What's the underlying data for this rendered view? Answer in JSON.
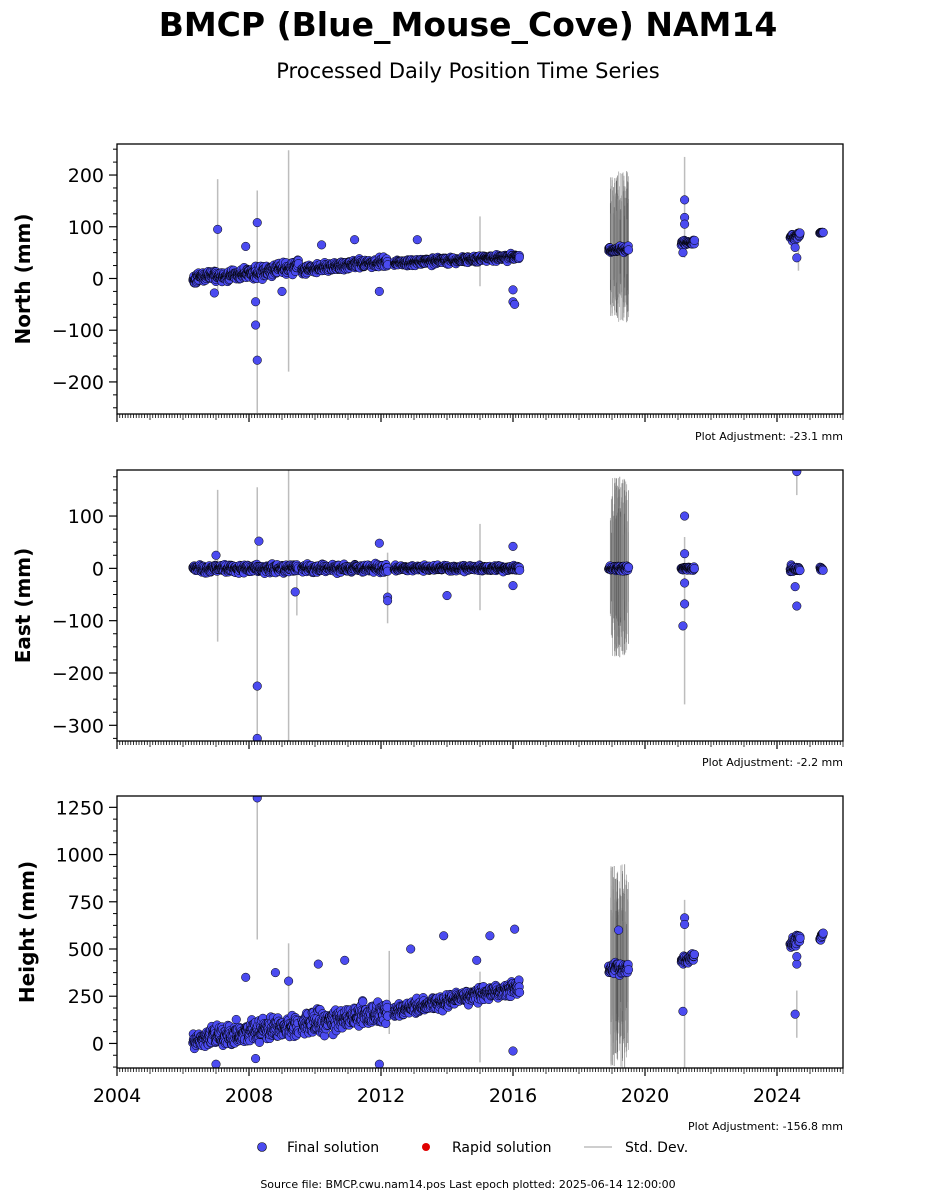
{
  "header": {
    "title": "BMCP (Blue_Mouse_Cove) NAM14",
    "subtitle": "Processed Daily Position Time Series"
  },
  "legend": {
    "final": "Final solution",
    "rapid": "Rapid solution",
    "std": "Std. Dev."
  },
  "colors": {
    "final": "#4b4bf0",
    "rapid": "#e00000",
    "std": "#bdbdbd",
    "edge": "#000000"
  },
  "footer": {
    "source": "Source file: BMCP.cwu.nam14.pos  Last epoch plotted: 2025-06-14 12:00:00"
  },
  "chart_data": [
    {
      "type": "scatter",
      "ylabel": "North (mm)",
      "adjustment": "Plot Adjustment: -23.1 mm",
      "xlim": [
        2004,
        2026
      ],
      "ylim": [
        -262,
        260
      ],
      "yticks": [
        -200,
        -100,
        0,
        100,
        200
      ],
      "ytick_labels": [
        "−200",
        "−100",
        "0",
        "100",
        "200"
      ],
      "segments": [
        {
          "x0": 2006.3,
          "x1": 2007.0,
          "y0": 0,
          "y1": 8,
          "noise": 9
        },
        {
          "x0": 2007.0,
          "x1": 2008.0,
          "y0": 2,
          "y1": 10,
          "noise": 9
        },
        {
          "x0": 2008.0,
          "x1": 2009.5,
          "y0": 8,
          "y1": 25,
          "noise": 11
        },
        {
          "x0": 2009.6,
          "x1": 2012.2,
          "y0": 16,
          "y1": 33,
          "noise": 8
        },
        {
          "x0": 2012.4,
          "x1": 2016.2,
          "y0": 30,
          "y1": 42,
          "noise": 6
        },
        {
          "x0": 2018.9,
          "x1": 2019.5,
          "y0": 53,
          "y1": 57,
          "noise": 5
        },
        {
          "x0": 2021.1,
          "x1": 2021.5,
          "y0": 68,
          "y1": 70,
          "noise": 4
        },
        {
          "x0": 2024.4,
          "x1": 2024.7,
          "y0": 80,
          "y1": 84,
          "noise": 6
        },
        {
          "x0": 2025.3,
          "x1": 2025.4,
          "y0": 88,
          "y1": 89,
          "noise": 1
        }
      ],
      "outliers": [
        {
          "x": 2007.05,
          "y": 95
        },
        {
          "x": 2008.25,
          "y": 108
        },
        {
          "x": 2008.2,
          "y": -90
        },
        {
          "x": 2008.25,
          "y": -158
        },
        {
          "x": 2008.2,
          "y": -45
        },
        {
          "x": 2007.9,
          "y": 62
        },
        {
          "x": 2010.2,
          "y": 65
        },
        {
          "x": 2011.2,
          "y": 75
        },
        {
          "x": 2011.95,
          "y": -25
        },
        {
          "x": 2013.1,
          "y": 75
        },
        {
          "x": 2016.0,
          "y": -45
        },
        {
          "x": 2016.05,
          "y": -50
        },
        {
          "x": 2016.0,
          "y": -22
        },
        {
          "x": 2021.2,
          "y": 152
        },
        {
          "x": 2021.2,
          "y": 118
        },
        {
          "x": 2021.2,
          "y": 105
        },
        {
          "x": 2021.15,
          "y": 50
        },
        {
          "x": 2024.6,
          "y": 40
        },
        {
          "x": 2024.55,
          "y": 60
        },
        {
          "x": 2009.0,
          "y": -25
        },
        {
          "x": 2006.95,
          "y": -28
        }
      ],
      "errorbars": [
        {
          "x": 2007.05,
          "y0": -30,
          "y1": 192
        },
        {
          "x": 2008.25,
          "y0": -260,
          "y1": 170
        },
        {
          "x": 2009.2,
          "y0": -180,
          "y1": 248
        },
        {
          "x": 2015.0,
          "y0": -15,
          "y1": 120
        },
        {
          "x": 2021.2,
          "y0": 40,
          "y1": 235
        },
        {
          "x": 2024.65,
          "y0": 15,
          "y1": 98
        }
      ],
      "noisy_band": {
        "x0": 2018.95,
        "x1": 2019.5,
        "y0": -85,
        "y1": 208
      }
    },
    {
      "type": "scatter",
      "ylabel": "East (mm)",
      "adjustment": "Plot Adjustment: -2.2 mm",
      "xlim": [
        2004,
        2026
      ],
      "ylim": [
        -330,
        188
      ],
      "yticks": [
        -300,
        -200,
        -100,
        0,
        100
      ],
      "ytick_labels": [
        "−300",
        "−200",
        "−100",
        "0",
        "100"
      ],
      "segments": [
        {
          "x0": 2006.3,
          "x1": 2009.5,
          "y0": 0,
          "y1": 0,
          "noise": 7
        },
        {
          "x0": 2009.6,
          "x1": 2012.2,
          "y0": 0,
          "y1": 0,
          "noise": 7
        },
        {
          "x0": 2012.4,
          "x1": 2016.2,
          "y0": 0,
          "y1": 0,
          "noise": 5
        },
        {
          "x0": 2018.9,
          "x1": 2019.5,
          "y0": 0,
          "y1": 0,
          "noise": 5
        },
        {
          "x0": 2021.1,
          "x1": 2021.5,
          "y0": 0,
          "y1": 0,
          "noise": 3
        },
        {
          "x0": 2024.4,
          "x1": 2024.7,
          "y0": -2,
          "y1": -2,
          "noise": 6
        },
        {
          "x0": 2025.3,
          "x1": 2025.4,
          "y0": -1,
          "y1": -1,
          "noise": 3
        }
      ],
      "outliers": [
        {
          "x": 2008.25,
          "y": -225
        },
        {
          "x": 2008.25,
          "y": -325
        },
        {
          "x": 2008.3,
          "y": 52
        },
        {
          "x": 2009.4,
          "y": -45
        },
        {
          "x": 2012.2,
          "y": -55
        },
        {
          "x": 2012.2,
          "y": -62
        },
        {
          "x": 2011.95,
          "y": 48
        },
        {
          "x": 2014.0,
          "y": -52
        },
        {
          "x": 2016.0,
          "y": 42
        },
        {
          "x": 2016.0,
          "y": -33
        },
        {
          "x": 2021.2,
          "y": 100
        },
        {
          "x": 2021.2,
          "y": 28
        },
        {
          "x": 2021.2,
          "y": -28
        },
        {
          "x": 2021.2,
          "y": -68
        },
        {
          "x": 2021.15,
          "y": -110
        },
        {
          "x": 2024.6,
          "y": 185
        },
        {
          "x": 2024.55,
          "y": -35
        },
        {
          "x": 2024.6,
          "y": -72
        },
        {
          "x": 2007.0,
          "y": 25
        }
      ],
      "errorbars": [
        {
          "x": 2007.05,
          "y0": -140,
          "y1": 150
        },
        {
          "x": 2008.25,
          "y0": -330,
          "y1": 155
        },
        {
          "x": 2009.2,
          "y0": -330,
          "y1": 188
        },
        {
          "x": 2009.45,
          "y0": -90,
          "y1": -10
        },
        {
          "x": 2012.2,
          "y0": -105,
          "y1": 30
        },
        {
          "x": 2015.0,
          "y0": -80,
          "y1": 85
        },
        {
          "x": 2021.2,
          "y0": -260,
          "y1": 60
        },
        {
          "x": 2024.6,
          "y0": 140,
          "y1": 188
        }
      ],
      "noisy_band": {
        "x0": 2018.95,
        "x1": 2019.5,
        "y0": -170,
        "y1": 175
      }
    },
    {
      "type": "scatter",
      "ylabel": "Height (mm)",
      "adjustment": "Plot Adjustment: -156.8 mm",
      "xlim": [
        2004,
        2026
      ],
      "ylim": [
        -130,
        1310
      ],
      "xticks": [
        2004,
        2008,
        2012,
        2016,
        2020,
        2024
      ],
      "xtick_labels": [
        "2004",
        "2008",
        "2012",
        "2016",
        "2020",
        "2024"
      ],
      "yticks": [
        0,
        250,
        500,
        750,
        1000,
        1250
      ],
      "ytick_labels": [
        "0",
        "250",
        "500",
        "750",
        "1000",
        "1250"
      ],
      "segments": [
        {
          "x0": 2006.3,
          "x1": 2007.0,
          "y0": 10,
          "y1": 50,
          "noise": 40
        },
        {
          "x0": 2007.0,
          "x1": 2009.5,
          "y0": 30,
          "y1": 100,
          "noise": 55
        },
        {
          "x0": 2009.6,
          "x1": 2012.2,
          "y0": 100,
          "y1": 170,
          "noise": 55
        },
        {
          "x0": 2012.4,
          "x1": 2016.2,
          "y0": 170,
          "y1": 300,
          "noise": 35
        },
        {
          "x0": 2018.9,
          "x1": 2019.5,
          "y0": 390,
          "y1": 400,
          "noise": 30
        },
        {
          "x0": 2021.1,
          "x1": 2021.5,
          "y0": 440,
          "y1": 460,
          "noise": 25
        },
        {
          "x0": 2024.4,
          "x1": 2024.7,
          "y0": 530,
          "y1": 560,
          "noise": 30
        },
        {
          "x0": 2025.3,
          "x1": 2025.4,
          "y0": 555,
          "y1": 580,
          "noise": 15
        }
      ],
      "outliers": [
        {
          "x": 2008.25,
          "y": 1300
        },
        {
          "x": 2007.9,
          "y": 350
        },
        {
          "x": 2008.8,
          "y": 375
        },
        {
          "x": 2009.2,
          "y": 330
        },
        {
          "x": 2010.1,
          "y": 420
        },
        {
          "x": 2010.9,
          "y": 440
        },
        {
          "x": 2011.95,
          "y": -110
        },
        {
          "x": 2012.9,
          "y": 500
        },
        {
          "x": 2013.9,
          "y": 570
        },
        {
          "x": 2014.9,
          "y": 440
        },
        {
          "x": 2015.3,
          "y": 570
        },
        {
          "x": 2016.05,
          "y": 605
        },
        {
          "x": 2016.0,
          "y": -40
        },
        {
          "x": 2008.2,
          "y": -80
        },
        {
          "x": 2007.0,
          "y": -110
        },
        {
          "x": 2021.2,
          "y": 665
        },
        {
          "x": 2021.2,
          "y": 630
        },
        {
          "x": 2021.15,
          "y": 170
        },
        {
          "x": 2024.55,
          "y": 155
        },
        {
          "x": 2024.6,
          "y": 420
        },
        {
          "x": 2024.6,
          "y": 460
        },
        {
          "x": 2019.2,
          "y": 600
        }
      ],
      "errorbars": [
        {
          "x": 2008.25,
          "y0": 550,
          "y1": 1310
        },
        {
          "x": 2009.2,
          "y0": 50,
          "y1": 530
        },
        {
          "x": 2012.25,
          "y0": 50,
          "y1": 490
        },
        {
          "x": 2015.0,
          "y0": -100,
          "y1": 380
        },
        {
          "x": 2021.2,
          "y0": -130,
          "y1": 760
        },
        {
          "x": 2024.6,
          "y0": 30,
          "y1": 280
        }
      ],
      "noisy_band": {
        "x0": 2018.95,
        "x1": 2019.5,
        "y0": -130,
        "y1": 950
      }
    }
  ]
}
